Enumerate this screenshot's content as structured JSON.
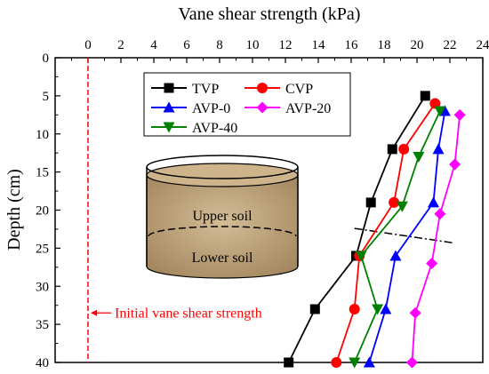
{
  "chart_data": {
    "type": "line",
    "title": "Vane shear strength (kPa)",
    "xlabel": "Vane shear strength (kPa)",
    "ylabel": "Depth (cm)",
    "xlim": [
      -2,
      24
    ],
    "ylim": [
      0,
      40
    ],
    "x_ticks": [
      0,
      2,
      4,
      6,
      8,
      10,
      12,
      14,
      16,
      18,
      20,
      22,
      24
    ],
    "y_ticks": [
      0,
      5,
      10,
      15,
      20,
      25,
      30,
      35,
      40
    ],
    "x_axis_position": "top",
    "y_inverted": true,
    "grid": false,
    "legend_position": "top-right",
    "series": [
      {
        "name": "TVP",
        "color": "#000000",
        "marker": "square",
        "x": [
          20.5,
          18.5,
          17.2,
          16.3,
          13.8,
          12.2
        ],
        "y": [
          5,
          12,
          19,
          26,
          33,
          40
        ]
      },
      {
        "name": "CVP",
        "color": "#ff0000",
        "marker": "circle",
        "x": [
          21.1,
          19.2,
          18.6,
          16.5,
          16.2,
          15.1
        ],
        "y": [
          6,
          12,
          19,
          26,
          33,
          40
        ]
      },
      {
        "name": "AVP-0",
        "color": "#0000ff",
        "marker": "triangle-up",
        "x": [
          21.7,
          21.3,
          21.0,
          18.7,
          18.1,
          17.1
        ],
        "y": [
          7,
          12,
          19,
          26,
          33,
          40
        ]
      },
      {
        "name": "AVP-20",
        "color": "#ff00ff",
        "marker": "diamond",
        "x": [
          22.6,
          22.3,
          21.4,
          20.9,
          19.9,
          19.7
        ],
        "y": [
          7.5,
          14,
          20.5,
          27,
          33.5,
          40
        ]
      },
      {
        "name": "AVP-40",
        "color": "#008000",
        "marker": "triangle-down",
        "x": [
          21.4,
          20.1,
          19.1,
          16.6,
          17.6,
          16.2
        ],
        "y": [
          7,
          13,
          19.5,
          26,
          33,
          40
        ]
      }
    ],
    "reference_line": {
      "x": 0,
      "label": "Initial vane shear strength",
      "color": "#ff0000"
    },
    "boundary_line": {
      "x": [
        16.2,
        22.2
      ],
      "y": [
        22.4,
        24.3
      ]
    },
    "inset": {
      "upper_label": "Upper soil",
      "lower_label": "Lower soil"
    }
  }
}
